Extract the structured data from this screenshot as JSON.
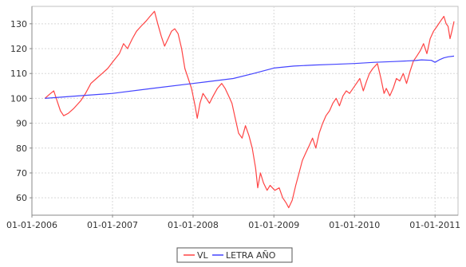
{
  "chart_data": {
    "type": "line",
    "title": "",
    "xlabel": "",
    "ylabel": "",
    "x_range": [
      "2006-01-01",
      "2011-04-15"
    ],
    "ylim": [
      53,
      137
    ],
    "grid": true,
    "legend_position": "bottom-center",
    "x_ticks": [
      "2006-01-01",
      "2007-01-01",
      "2008-01-01",
      "2009-01-01",
      "2010-01-01",
      "2011-01-01"
    ],
    "x_tick_labels": [
      "01-01-2006",
      "01-01-2007",
      "01-01-2008",
      "01-01-2009",
      "01-01-2010",
      "01-01-2011"
    ],
    "y_ticks": [
      60,
      70,
      80,
      90,
      100,
      110,
      120,
      130
    ],
    "y_tick_labels": [
      "60",
      "70",
      "80",
      "90",
      "100",
      "110",
      "120",
      "130"
    ],
    "series": [
      {
        "name": "VL",
        "color": "#ff4444",
        "points": [
          [
            "2006-03-01",
            100
          ],
          [
            "2006-03-20",
            101.5
          ],
          [
            "2006-04-10",
            103
          ],
          [
            "2006-04-25",
            99
          ],
          [
            "2006-05-10",
            95
          ],
          [
            "2006-05-25",
            93
          ],
          [
            "2006-06-15",
            94
          ],
          [
            "2006-07-10",
            96
          ],
          [
            "2006-08-10",
            99
          ],
          [
            "2006-09-01",
            102
          ],
          [
            "2006-09-25",
            106
          ],
          [
            "2006-10-20",
            108
          ],
          [
            "2006-11-15",
            110
          ],
          [
            "2006-12-10",
            112
          ],
          [
            "2007-01-05",
            115
          ],
          [
            "2007-02-01",
            118
          ],
          [
            "2007-02-20",
            122
          ],
          [
            "2007-03-10",
            120
          ],
          [
            "2007-04-01",
            124
          ],
          [
            "2007-04-20",
            127
          ],
          [
            "2007-05-10",
            129
          ],
          [
            "2007-06-01",
            131
          ],
          [
            "2007-06-20",
            133
          ],
          [
            "2007-07-10",
            135
          ],
          [
            "2007-07-25",
            130
          ],
          [
            "2007-08-10",
            125
          ],
          [
            "2007-08-25",
            121
          ],
          [
            "2007-09-10",
            124
          ],
          [
            "2007-09-25",
            127
          ],
          [
            "2007-10-10",
            128
          ],
          [
            "2007-10-25",
            126
          ],
          [
            "2007-11-10",
            120
          ],
          [
            "2007-11-25",
            112
          ],
          [
            "2007-12-10",
            108
          ],
          [
            "2007-12-25",
            104
          ],
          [
            "2008-01-10",
            97
          ],
          [
            "2008-01-20",
            92
          ],
          [
            "2008-02-01",
            98
          ],
          [
            "2008-02-15",
            102
          ],
          [
            "2008-03-01",
            100
          ],
          [
            "2008-03-15",
            98
          ],
          [
            "2008-04-01",
            101
          ],
          [
            "2008-04-20",
            104
          ],
          [
            "2008-05-10",
            106
          ],
          [
            "2008-05-25",
            104
          ],
          [
            "2008-06-10",
            101
          ],
          [
            "2008-06-25",
            98
          ],
          [
            "2008-07-10",
            92
          ],
          [
            "2008-07-25",
            86
          ],
          [
            "2008-08-10",
            84
          ],
          [
            "2008-08-25",
            89
          ],
          [
            "2008-09-10",
            85
          ],
          [
            "2008-09-25",
            80
          ],
          [
            "2008-10-10",
            72
          ],
          [
            "2008-10-20",
            64
          ],
          [
            "2008-11-01",
            70
          ],
          [
            "2008-11-15",
            66
          ],
          [
            "2008-12-01",
            63
          ],
          [
            "2008-12-15",
            65
          ],
          [
            "2009-01-05",
            63
          ],
          [
            "2009-01-25",
            64
          ],
          [
            "2009-02-10",
            60
          ],
          [
            "2009-02-25",
            58
          ],
          [
            "2009-03-09",
            56
          ],
          [
            "2009-03-25",
            59
          ],
          [
            "2009-04-10",
            65
          ],
          [
            "2009-04-25",
            70
          ],
          [
            "2009-05-10",
            75
          ],
          [
            "2009-05-25",
            78
          ],
          [
            "2009-06-10",
            81
          ],
          [
            "2009-06-25",
            84
          ],
          [
            "2009-07-10",
            80
          ],
          [
            "2009-07-25",
            86
          ],
          [
            "2009-08-10",
            90
          ],
          [
            "2009-08-25",
            93
          ],
          [
            "2009-09-10",
            95
          ],
          [
            "2009-09-25",
            98
          ],
          [
            "2009-10-10",
            100
          ],
          [
            "2009-10-25",
            97
          ],
          [
            "2009-11-10",
            101
          ],
          [
            "2009-11-25",
            103
          ],
          [
            "2009-12-10",
            102
          ],
          [
            "2010-01-10",
            106
          ],
          [
            "2010-01-25",
            108
          ],
          [
            "2010-02-10",
            103
          ],
          [
            "2010-02-25",
            107
          ],
          [
            "2010-03-10",
            110
          ],
          [
            "2010-03-25",
            112
          ],
          [
            "2010-04-15",
            114
          ],
          [
            "2010-05-01",
            108
          ],
          [
            "2010-05-15",
            102
          ],
          [
            "2010-05-25",
            104
          ],
          [
            "2010-06-10",
            101
          ],
          [
            "2010-06-25",
            104
          ],
          [
            "2010-07-10",
            108
          ],
          [
            "2010-07-25",
            107
          ],
          [
            "2010-08-10",
            110
          ],
          [
            "2010-08-25",
            106
          ],
          [
            "2010-09-10",
            111
          ],
          [
            "2010-09-25",
            115
          ],
          [
            "2010-10-10",
            117
          ],
          [
            "2010-10-25",
            119
          ],
          [
            "2010-11-10",
            122
          ],
          [
            "2010-11-25",
            118
          ],
          [
            "2010-12-10",
            124
          ],
          [
            "2010-12-25",
            127
          ],
          [
            "2011-01-10",
            129
          ],
          [
            "2011-01-25",
            131
          ],
          [
            "2011-02-10",
            133
          ],
          [
            "2011-02-20",
            130
          ],
          [
            "2011-03-01",
            129
          ],
          [
            "2011-03-10",
            124
          ],
          [
            "2011-03-18",
            127
          ],
          [
            "2011-03-28",
            131
          ]
        ]
      },
      {
        "name": "LETRA AÑO",
        "color": "#4444ff",
        "points": [
          [
            "2006-03-01",
            100
          ],
          [
            "2006-07-01",
            100.8
          ],
          [
            "2007-01-01",
            102
          ],
          [
            "2007-07-01",
            104
          ],
          [
            "2008-01-01",
            106
          ],
          [
            "2008-07-01",
            108
          ],
          [
            "2008-10-01",
            110
          ],
          [
            "2009-01-01",
            112.2
          ],
          [
            "2009-04-01",
            113
          ],
          [
            "2009-07-01",
            113.4
          ],
          [
            "2009-10-01",
            113.7
          ],
          [
            "2010-01-01",
            114
          ],
          [
            "2010-04-01",
            114.5
          ],
          [
            "2010-07-01",
            114.8
          ],
          [
            "2010-10-01",
            115.2
          ],
          [
            "2010-11-01",
            115.5
          ],
          [
            "2010-12-15",
            115.3
          ],
          [
            "2011-01-01",
            114.5
          ],
          [
            "2011-01-20",
            115.5
          ],
          [
            "2011-02-10",
            116.3
          ],
          [
            "2011-03-01",
            116.7
          ],
          [
            "2011-03-28",
            117
          ]
        ]
      }
    ]
  }
}
